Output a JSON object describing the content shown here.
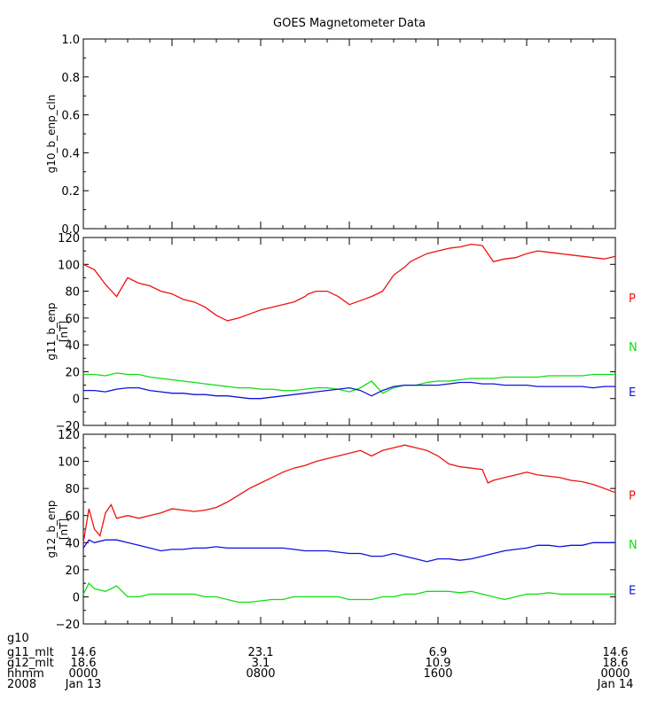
{
  "chart_data": [
    {
      "type": "line",
      "title": "GOES Magnetometer Data",
      "ylabel": "g10_b_enp_cln",
      "unit": "",
      "ylim": [
        0,
        1.0
      ],
      "yticks": [
        0,
        0.2,
        0.4,
        0.6,
        0.8,
        1.0
      ],
      "ytick_labels": [
        "0.0",
        "0.2",
        "0.4",
        "0.6",
        "0.8",
        "1.0"
      ],
      "series": []
    },
    {
      "type": "line",
      "ylabel": "g11_b_enp",
      "unit": "[nT]",
      "ylim": [
        -20,
        120
      ],
      "yticks": [
        -20,
        0,
        20,
        40,
        60,
        80,
        100,
        120
      ],
      "ytick_labels": [
        "−20",
        "0",
        "20",
        "40",
        "60",
        "80",
        "100",
        "120"
      ],
      "series": [
        {
          "name": "P",
          "color": "#ee1111",
          "x": [
            0,
            1,
            2,
            3,
            3.7,
            4,
            5,
            6,
            7,
            8,
            9,
            10,
            11,
            12,
            13,
            14,
            15,
            16,
            17,
            18,
            19,
            20,
            20.3,
            21,
            22,
            23,
            24,
            25,
            26,
            27,
            28,
            29,
            29.5,
            30,
            31,
            32,
            33,
            34,
            35,
            36,
            37,
            38,
            39,
            40,
            41,
            42,
            43,
            44,
            45,
            46,
            47,
            48
          ],
          "y": [
            100,
            96,
            85,
            76,
            86,
            90,
            86,
            84,
            80,
            78,
            74,
            72,
            68,
            62,
            58,
            60,
            63,
            66,
            68,
            70,
            72,
            76,
            78,
            80,
            80,
            76,
            70,
            73,
            76,
            80,
            92,
            98,
            102,
            104,
            108,
            110,
            112,
            113,
            115,
            114,
            102,
            104,
            105,
            108,
            110,
            109,
            108,
            107,
            106,
            105,
            104,
            106
          ]
        },
        {
          "name": "N",
          "color": "#11dd11",
          "x": [
            0,
            1,
            2,
            3,
            4,
            5,
            6,
            7,
            8,
            9,
            10,
            11,
            12,
            13,
            14,
            15,
            16,
            17,
            18,
            19,
            20,
            21,
            22,
            23,
            24,
            25,
            26,
            27,
            28,
            29,
            30,
            31,
            32,
            33,
            34,
            35,
            36,
            37,
            38,
            39,
            40,
            41,
            42,
            43,
            44,
            45,
            46,
            47,
            48
          ],
          "y": [
            18,
            18,
            17,
            19,
            18,
            18,
            16,
            15,
            14,
            13,
            12,
            11,
            10,
            9,
            8,
            8,
            7,
            7,
            6,
            6,
            7,
            8,
            8,
            7,
            5,
            8,
            13,
            4,
            8,
            10,
            10,
            12,
            13,
            13,
            14,
            15,
            15,
            15,
            16,
            16,
            16,
            16,
            17,
            17,
            17,
            17,
            18,
            18,
            18
          ]
        },
        {
          "name": "E",
          "color": "#1111dd",
          "x": [
            0,
            1,
            2,
            3,
            4,
            5,
            6,
            7,
            8,
            9,
            10,
            11,
            12,
            13,
            14,
            15,
            16,
            17,
            18,
            19,
            20,
            21,
            22,
            23,
            24,
            25,
            26,
            27,
            28,
            29,
            30,
            31,
            32,
            33,
            34,
            35,
            36,
            37,
            38,
            39,
            40,
            41,
            42,
            43,
            44,
            45,
            46,
            47,
            48
          ],
          "y": [
            6,
            6,
            5,
            7,
            8,
            8,
            6,
            5,
            4,
            4,
            3,
            3,
            2,
            2,
            1,
            0,
            0,
            1,
            2,
            3,
            4,
            5,
            6,
            7,
            8,
            6,
            2,
            6,
            9,
            10,
            10,
            10,
            10,
            11,
            12,
            12,
            11,
            11,
            10,
            10,
            10,
            9,
            9,
            9,
            9,
            9,
            8,
            9,
            9
          ]
        }
      ]
    },
    {
      "type": "line",
      "ylabel": "g12_b_enp",
      "unit": "[nT]",
      "ylim": [
        -20,
        120
      ],
      "yticks": [
        -20,
        0,
        20,
        40,
        60,
        80,
        100,
        120
      ],
      "ytick_labels": [
        "−20",
        "0",
        "20",
        "40",
        "60",
        "80",
        "100",
        "120"
      ],
      "series": [
        {
          "name": "P",
          "color": "#ee1111",
          "x": [
            0,
            0.5,
            1,
            1.5,
            2,
            2.5,
            3,
            4,
            5,
            6,
            7,
            8,
            9,
            10,
            11,
            12,
            13,
            14,
            15,
            16,
            17,
            18,
            19,
            20,
            21,
            22,
            23,
            24,
            25,
            26,
            27,
            28,
            29,
            30,
            31,
            32,
            33,
            34,
            35,
            36,
            36.5,
            37,
            38,
            39,
            40,
            41,
            42,
            43,
            44,
            45,
            46,
            47,
            48
          ],
          "y": [
            40,
            65,
            50,
            45,
            62,
            68,
            58,
            60,
            58,
            60,
            62,
            65,
            64,
            63,
            64,
            66,
            70,
            75,
            80,
            84,
            88,
            92,
            95,
            97,
            100,
            102,
            104,
            106,
            108,
            104,
            108,
            110,
            112,
            110,
            108,
            104,
            98,
            96,
            95,
            94,
            84,
            86,
            88,
            90,
            92,
            90,
            89,
            88,
            86,
            85,
            83,
            80,
            77
          ]
        },
        {
          "name": "N",
          "color": "#11dd11",
          "x": [
            0,
            0.5,
            1,
            2,
            3,
            4,
            5,
            6,
            7,
            8,
            9,
            10,
            11,
            12,
            13,
            14,
            15,
            16,
            17,
            18,
            19,
            20,
            21,
            22,
            23,
            24,
            25,
            26,
            27,
            28,
            29,
            30,
            31,
            32,
            33,
            34,
            35,
            36,
            37,
            38,
            39,
            40,
            41,
            42,
            43,
            44,
            45,
            46,
            47,
            48
          ],
          "y": [
            2,
            10,
            6,
            4,
            8,
            0,
            0,
            2,
            2,
            2,
            2,
            2,
            0,
            0,
            -2,
            -4,
            -4,
            -3,
            -2,
            -2,
            0,
            0,
            0,
            0,
            0,
            -2,
            -2,
            -2,
            0,
            0,
            2,
            2,
            4,
            4,
            4,
            3,
            4,
            2,
            0,
            -2,
            0,
            2,
            2,
            3,
            2,
            2,
            2,
            2,
            2,
            2
          ]
        },
        {
          "name": "E",
          "color": "#1111dd",
          "x": [
            0,
            0.5,
            1,
            2,
            3,
            4,
            5,
            6,
            7,
            8,
            9,
            10,
            11,
            12,
            13,
            14,
            15,
            16,
            17,
            18,
            19,
            20,
            21,
            22,
            23,
            24,
            25,
            26,
            27,
            28,
            29,
            30,
            31,
            32,
            33,
            34,
            35,
            36,
            37,
            38,
            39,
            40,
            41,
            42,
            43,
            44,
            45,
            46,
            47,
            48
          ],
          "y": [
            36,
            42,
            40,
            42,
            42,
            40,
            38,
            36,
            34,
            35,
            35,
            36,
            36,
            37,
            36,
            36,
            36,
            36,
            36,
            36,
            35,
            34,
            34,
            34,
            33,
            32,
            32,
            30,
            30,
            32,
            30,
            28,
            26,
            28,
            28,
            27,
            28,
            30,
            32,
            34,
            35,
            36,
            38,
            38,
            37,
            38,
            38,
            40,
            40,
            40
          ]
        }
      ]
    }
  ],
  "x_axis": {
    "range_hours": [
      0,
      48
    ],
    "row_labels": [
      "g10",
      "g11_mlt",
      "g12_mlt",
      "hhmm",
      "2008"
    ],
    "columns": [
      {
        "x": 0,
        "g10": "",
        "g11_mlt": "14.6",
        "g12_mlt": "18.6",
        "hhmm": "0000",
        "date": "Jan 13"
      },
      {
        "x": 16,
        "g10": "",
        "g11_mlt": "23.1",
        "g12_mlt": "3.1",
        "hhmm": "0800",
        "date": ""
      },
      {
        "x": 32,
        "g10": "",
        "g11_mlt": "6.9",
        "g12_mlt": "10.9",
        "hhmm": "1600",
        "date": ""
      },
      {
        "x": 48,
        "g10": "",
        "g11_mlt": "14.6",
        "g12_mlt": "18.6",
        "hhmm": "0000",
        "date": "Jan 14"
      }
    ]
  }
}
